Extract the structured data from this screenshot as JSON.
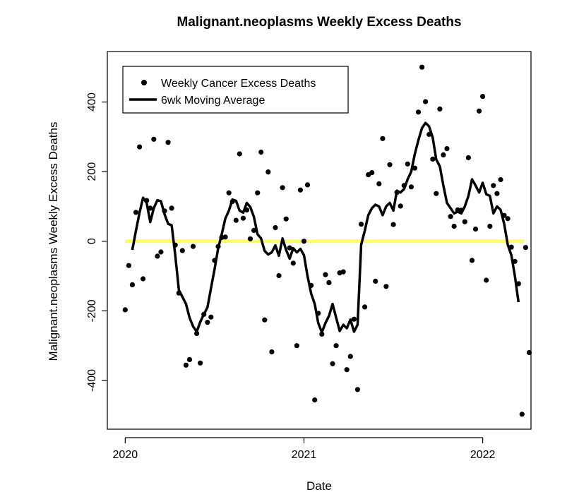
{
  "chart_data": {
    "type": "scatter",
    "title": "Malignant.neoplasms Weekly Excess Deaths",
    "xlabel": "Date",
    "ylabel": "Malignant.neoplasms Weekly Excess Deaths",
    "x_ticks": [
      {
        "label": "2020",
        "value": 2020.0
      },
      {
        "label": "2021",
        "value": 2021.0
      },
      {
        "label": "2022",
        "value": 2022.0
      }
    ],
    "y_ticks": [
      {
        "label": "-400",
        "value": -400
      },
      {
        "label": "-200",
        "value": -200
      },
      {
        "label": "0",
        "value": 0
      },
      {
        "label": "200",
        "value": 200
      },
      {
        "label": "400",
        "value": 400
      }
    ],
    "xlim": [
      2019.9,
      2022.27
    ],
    "ylim": [
      -540,
      545
    ],
    "legend_position": "top-left",
    "colors": {
      "points": "#000000",
      "moving_average": "#000000",
      "zero_line": "#ffff66"
    },
    "series": [
      {
        "name": "Weekly Cancer Excess Deaths",
        "kind": "points",
        "points": [
          [
            2020.0,
            -197
          ],
          [
            2020.02,
            -70
          ],
          [
            2020.04,
            -125
          ],
          [
            2020.06,
            83
          ],
          [
            2020.08,
            271
          ],
          [
            2020.1,
            -108
          ],
          [
            2020.12,
            117
          ],
          [
            2020.14,
            95
          ],
          [
            2020.16,
            293
          ],
          [
            2020.18,
            -43
          ],
          [
            2020.2,
            -31
          ],
          [
            2020.22,
            87
          ],
          [
            2020.24,
            284
          ],
          [
            2020.26,
            95
          ],
          [
            2020.28,
            -11
          ],
          [
            2020.3,
            -149
          ],
          [
            2020.32,
            -27
          ],
          [
            2020.34,
            -356
          ],
          [
            2020.36,
            -340
          ],
          [
            2020.38,
            -15
          ],
          [
            2020.4,
            -265
          ],
          [
            2020.42,
            -350
          ],
          [
            2020.44,
            -210
          ],
          [
            2020.46,
            -233
          ],
          [
            2020.48,
            -218
          ],
          [
            2020.5,
            -55
          ],
          [
            2020.52,
            -15
          ],
          [
            2020.54,
            11
          ],
          [
            2020.56,
            12
          ],
          [
            2020.58,
            139
          ],
          [
            2020.6,
            114
          ],
          [
            2020.62,
            60
          ],
          [
            2020.64,
            251
          ],
          [
            2020.66,
            66
          ],
          [
            2020.68,
            90
          ],
          [
            2020.7,
            7
          ],
          [
            2020.72,
            31
          ],
          [
            2020.74,
            139
          ],
          [
            2020.76,
            256
          ],
          [
            2020.78,
            -226
          ],
          [
            2020.8,
            199
          ],
          [
            2020.82,
            -318
          ],
          [
            2020.84,
            39
          ],
          [
            2020.86,
            -99
          ],
          [
            2020.88,
            154
          ],
          [
            2020.9,
            64
          ],
          [
            2020.92,
            -19
          ],
          [
            2020.94,
            -63
          ],
          [
            2020.96,
            -300
          ],
          [
            2020.98,
            147
          ],
          [
            2021.0,
            0
          ],
          [
            2021.02,
            162
          ],
          [
            2021.04,
            -127
          ],
          [
            2021.06,
            -456
          ],
          [
            2021.08,
            -207
          ],
          [
            2021.1,
            -267
          ],
          [
            2021.12,
            -96
          ],
          [
            2021.14,
            -119
          ],
          [
            2021.16,
            -352
          ],
          [
            2021.18,
            -300
          ],
          [
            2021.2,
            -91
          ],
          [
            2021.22,
            -88
          ],
          [
            2021.24,
            -369
          ],
          [
            2021.26,
            -331
          ],
          [
            2021.28,
            -224
          ],
          [
            2021.3,
            -426
          ],
          [
            2021.32,
            49
          ],
          [
            2021.34,
            -189
          ],
          [
            2021.36,
            191
          ],
          [
            2021.38,
            197
          ],
          [
            2021.4,
            -115
          ],
          [
            2021.42,
            165
          ],
          [
            2021.44,
            295
          ],
          [
            2021.46,
            -130
          ],
          [
            2021.48,
            220
          ],
          [
            2021.5,
            48
          ],
          [
            2021.52,
            140
          ],
          [
            2021.54,
            101
          ],
          [
            2021.56,
            160
          ],
          [
            2021.58,
            222
          ],
          [
            2021.6,
            156
          ],
          [
            2021.62,
            210
          ],
          [
            2021.64,
            371
          ],
          [
            2021.66,
            500
          ],
          [
            2021.68,
            401
          ],
          [
            2021.7,
            307
          ],
          [
            2021.72,
            236
          ],
          [
            2021.74,
            137
          ],
          [
            2021.76,
            380
          ],
          [
            2021.78,
            248
          ],
          [
            2021.8,
            266
          ],
          [
            2021.82,
            71
          ],
          [
            2021.84,
            43
          ],
          [
            2021.86,
            90
          ],
          [
            2021.88,
            89
          ],
          [
            2021.9,
            56
          ],
          [
            2021.92,
            240
          ],
          [
            2021.94,
            -55
          ],
          [
            2021.96,
            35
          ],
          [
            2021.98,
            374
          ],
          [
            2022.0,
            416
          ],
          [
            2022.02,
            -112
          ],
          [
            2022.04,
            43
          ],
          [
            2022.06,
            160
          ],
          [
            2022.08,
            137
          ],
          [
            2022.1,
            177
          ],
          [
            2022.12,
            74
          ],
          [
            2022.14,
            65
          ],
          [
            2022.16,
            -17
          ],
          [
            2022.18,
            -58
          ],
          [
            2022.2,
            -122
          ],
          [
            2022.22,
            -497
          ],
          [
            2022.24,
            -18
          ],
          [
            2022.26,
            -320
          ]
        ]
      },
      {
        "name": "6wk Moving Average",
        "kind": "line",
        "points": [
          [
            2020.04,
            -25
          ],
          [
            2020.06,
            30
          ],
          [
            2020.08,
            82
          ],
          [
            2020.1,
            125
          ],
          [
            2020.12,
            110
          ],
          [
            2020.14,
            55
          ],
          [
            2020.16,
            95
          ],
          [
            2020.18,
            118
          ],
          [
            2020.2,
            115
          ],
          [
            2020.22,
            78
          ],
          [
            2020.24,
            50
          ],
          [
            2020.26,
            46
          ],
          [
            2020.28,
            -40
          ],
          [
            2020.3,
            -140
          ],
          [
            2020.32,
            -160
          ],
          [
            2020.34,
            -180
          ],
          [
            2020.36,
            -220
          ],
          [
            2020.38,
            -245
          ],
          [
            2020.4,
            -260
          ],
          [
            2020.42,
            -232
          ],
          [
            2020.44,
            -210
          ],
          [
            2020.46,
            -190
          ],
          [
            2020.48,
            -135
          ],
          [
            2020.5,
            -80
          ],
          [
            2020.52,
            -20
          ],
          [
            2020.54,
            20
          ],
          [
            2020.56,
            65
          ],
          [
            2020.58,
            88
          ],
          [
            2020.6,
            120
          ],
          [
            2020.62,
            116
          ],
          [
            2020.64,
            88
          ],
          [
            2020.66,
            82
          ],
          [
            2020.68,
            110
          ],
          [
            2020.7,
            98
          ],
          [
            2020.72,
            70
          ],
          [
            2020.74,
            20
          ],
          [
            2020.76,
            8
          ],
          [
            2020.78,
            -28
          ],
          [
            2020.8,
            -38
          ],
          [
            2020.82,
            -32
          ],
          [
            2020.84,
            -12
          ],
          [
            2020.86,
            -42
          ],
          [
            2020.88,
            8
          ],
          [
            2020.9,
            -25
          ],
          [
            2020.92,
            -50
          ],
          [
            2020.94,
            -20
          ],
          [
            2020.96,
            -32
          ],
          [
            2020.98,
            -22
          ],
          [
            2021.0,
            -40
          ],
          [
            2021.02,
            -100
          ],
          [
            2021.04,
            -150
          ],
          [
            2021.06,
            -180
          ],
          [
            2021.08,
            -235
          ],
          [
            2021.1,
            -262
          ],
          [
            2021.12,
            -235
          ],
          [
            2021.14,
            -215
          ],
          [
            2021.16,
            -180
          ],
          [
            2021.18,
            -220
          ],
          [
            2021.2,
            -258
          ],
          [
            2021.22,
            -240
          ],
          [
            2021.24,
            -250
          ],
          [
            2021.26,
            -225
          ],
          [
            2021.28,
            -260
          ],
          [
            2021.3,
            -240
          ],
          [
            2021.32,
            -10
          ],
          [
            2021.34,
            30
          ],
          [
            2021.36,
            75
          ],
          [
            2021.38,
            95
          ],
          [
            2021.4,
            105
          ],
          [
            2021.42,
            100
          ],
          [
            2021.44,
            75
          ],
          [
            2021.46,
            100
          ],
          [
            2021.48,
            110
          ],
          [
            2021.5,
            88
          ],
          [
            2021.52,
            145
          ],
          [
            2021.54,
            140
          ],
          [
            2021.56,
            150
          ],
          [
            2021.58,
            178
          ],
          [
            2021.6,
            200
          ],
          [
            2021.62,
            250
          ],
          [
            2021.64,
            290
          ],
          [
            2021.66,
            325
          ],
          [
            2021.68,
            340
          ],
          [
            2021.7,
            330
          ],
          [
            2021.72,
            298
          ],
          [
            2021.74,
            235
          ],
          [
            2021.76,
            215
          ],
          [
            2021.78,
            160
          ],
          [
            2021.8,
            110
          ],
          [
            2021.82,
            95
          ],
          [
            2021.84,
            80
          ],
          [
            2021.86,
            85
          ],
          [
            2021.88,
            80
          ],
          [
            2021.9,
            100
          ],
          [
            2021.92,
            130
          ],
          [
            2021.94,
            178
          ],
          [
            2021.96,
            160
          ],
          [
            2021.98,
            140
          ],
          [
            2022.0,
            168
          ],
          [
            2022.02,
            135
          ],
          [
            2022.04,
            130
          ],
          [
            2022.06,
            80
          ],
          [
            2022.08,
            100
          ],
          [
            2022.1,
            90
          ],
          [
            2022.12,
            50
          ],
          [
            2022.14,
            -10
          ],
          [
            2022.16,
            -40
          ],
          [
            2022.18,
            -100
          ],
          [
            2022.2,
            -175
          ]
        ]
      },
      {
        "name": "",
        "kind": "reference",
        "points": [
          [
            2020.0,
            0
          ],
          [
            2022.23,
            0
          ]
        ]
      }
    ]
  }
}
